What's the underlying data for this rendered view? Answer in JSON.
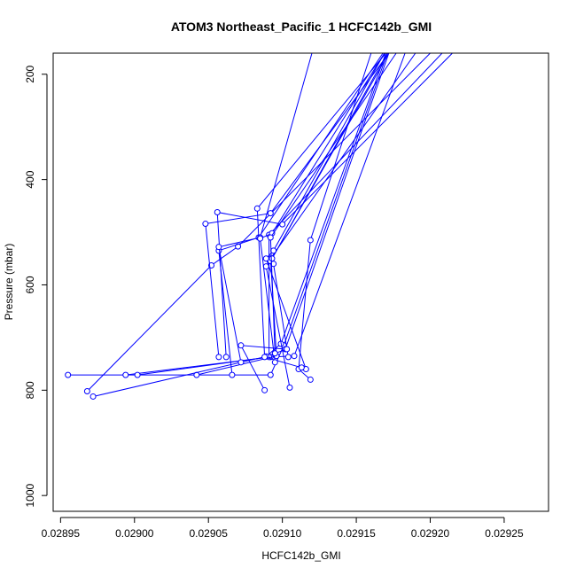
{
  "chart_data": {
    "type": "line",
    "title": "ATOM3 Northeast_Pacific_1 HCFC142b_GMI",
    "xlabel": "HCFC142b_GMI",
    "ylabel": "Pressure (mbar)",
    "xlim": [
      0.028945,
      0.02928
    ],
    "ylim": [
      1030,
      160
    ],
    "y_reversed": true,
    "grid": false,
    "legend": "none",
    "colors": {
      "series": "#0000ff",
      "axes": "#000000",
      "background": "#ffffff"
    },
    "x_ticks": [
      {
        "value": 0.02895,
        "label": "0.02895"
      },
      {
        "value": 0.029,
        "label": "0.02900"
      },
      {
        "value": 0.02905,
        "label": "0.02905"
      },
      {
        "value": 0.0291,
        "label": "0.02910"
      },
      {
        "value": 0.02915,
        "label": "0.02915"
      },
      {
        "value": 0.0292,
        "label": "0.02920"
      },
      {
        "value": 0.02925,
        "label": "0.02925"
      }
    ],
    "y_ticks": [
      {
        "value": 200,
        "label": "200"
      },
      {
        "value": 400,
        "label": "400"
      },
      {
        "value": 600,
        "label": "600"
      },
      {
        "value": 800,
        "label": "800"
      },
      {
        "value": 1000,
        "label": "1000"
      }
    ],
    "series": [
      {
        "x": [
          0.028955,
          0.029092,
          0.029101,
          0.029171
        ],
        "y": [
          771,
          771,
          715,
          160
        ]
      },
      {
        "x": [
          0.028994,
          0.029092,
          0.029108,
          0.029183
        ],
        "y": [
          771,
          737,
          735,
          160
        ]
      },
      {
        "x": [
          0.029002,
          0.029091,
          0.029091,
          0.029208
        ],
        "y": [
          771,
          737,
          505,
          160
        ]
      },
      {
        "x": [
          0.029042,
          0.029096,
          0.029092,
          0.02919
        ],
        "y": [
          771,
          735,
          550,
          160
        ]
      },
      {
        "x": [
          0.028968,
          0.029052,
          0.02907,
          0.0292
        ],
        "y": [
          802,
          563,
          527,
          160
        ]
      },
      {
        "x": [
          0.028972,
          0.029089,
          0.029099,
          0.02917
        ],
        "y": [
          812,
          736,
          712,
          160
        ]
      },
      {
        "x": [
          0.029066,
          0.029057,
          0.029084,
          0.029168
        ],
        "y": [
          771,
          535,
          510,
          160
        ]
      },
      {
        "x": [
          0.029057,
          0.029048,
          0.029092,
          0.029172
        ],
        "y": [
          737,
          484,
          464,
          160
        ]
      },
      {
        "x": [
          0.029062,
          0.029056,
          0.0291,
          0.029215
        ],
        "y": [
          737,
          462,
          485,
          160
        ]
      },
      {
        "x": [
          0.029088,
          0.029072,
          0.029102,
          0.029172
        ],
        "y": [
          800,
          715,
          722,
          160
        ]
      },
      {
        "x": [
          0.029105,
          0.029089,
          0.029092,
          0.029172
        ],
        "y": [
          795,
          565,
          555,
          160
        ]
      },
      {
        "x": [
          0.029119,
          0.029111,
          0.029119,
          0.02916
        ],
        "y": [
          780,
          760,
          515,
          160
        ]
      },
      {
        "x": [
          0.029116,
          0.029089,
          0.029094,
          0.029169
        ],
        "y": [
          760,
          550,
          535,
          160
        ]
      },
      {
        "x": [
          0.029113,
          0.029088,
          0.029083,
          0.02917
        ],
        "y": [
          757,
          737,
          455,
          160
        ]
      },
      {
        "x": [
          0.029104,
          0.029094,
          0.029093,
          0.029171
        ],
        "y": [
          737,
          560,
          550,
          160
        ]
      },
      {
        "x": [
          0.029072,
          0.029057,
          0.029085,
          0.02912
        ],
        "y": [
          747,
          528,
          510,
          160
        ]
      },
      {
        "x": [
          0.029095,
          0.029085,
          0.029093,
          0.029169
        ],
        "y": [
          747,
          512,
          502,
          160
        ]
      },
      {
        "x": [
          0.029103,
          0.029095,
          0.029092,
          0.029177
        ],
        "y": [
          722,
          730,
          510,
          160
        ]
      }
    ]
  }
}
